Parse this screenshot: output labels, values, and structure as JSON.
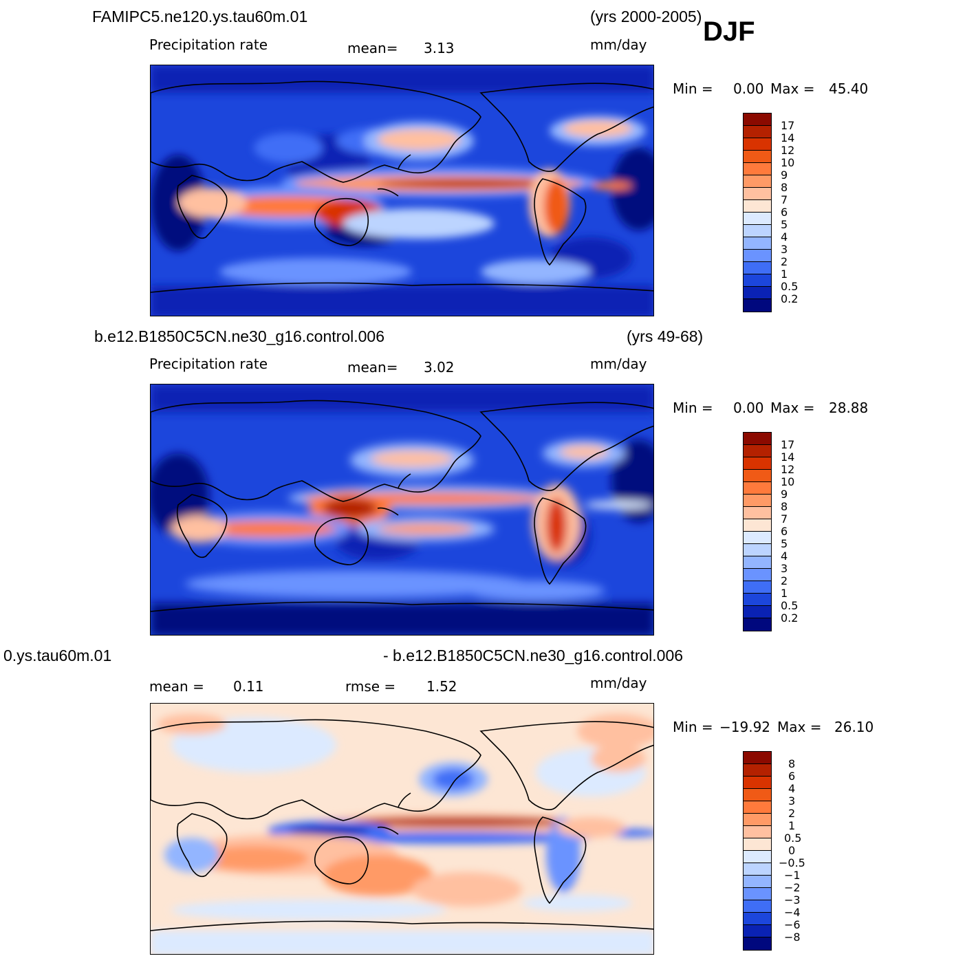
{
  "season": "DJF",
  "panels": [
    {
      "case": "FAMIPC5.ne120.ys.tau60m.01",
      "years": "(yrs 2000-2005)",
      "variable": "Precipitation rate",
      "stat1_label": "mean=",
      "stat1_value": "3.13",
      "units": "mm/day",
      "min_label": "Min =",
      "min_value": "0.00",
      "max_label": "Max =",
      "max_value": "45.40",
      "colorbar_labels": [
        "17",
        "14",
        "12",
        "10",
        "9",
        "8",
        "7",
        "6",
        "5",
        "4",
        "3",
        "2",
        "1",
        "0.5",
        "0.2"
      ]
    },
    {
      "case": "b.e12.B1850C5CN.ne30_g16.control.006",
      "years": "(yrs 49-68)",
      "variable": "Precipitation rate",
      "stat1_label": "mean=",
      "stat1_value": "3.02",
      "units": "mm/day",
      "min_label": "Min =",
      "min_value": "0.00",
      "max_label": "Max =",
      "max_value": "28.88",
      "colorbar_labels": [
        "17",
        "14",
        "12",
        "10",
        "9",
        "8",
        "7",
        "6",
        "5",
        "4",
        "3",
        "2",
        "1",
        "0.5",
        "0.2"
      ]
    },
    {
      "case_left": "0.ys.tau60m.01",
      "case_right": "- b.e12.B1850C5CN.ne30_g16.control.006",
      "stat1_label": "mean =",
      "stat1_value": "0.11",
      "stat2_label": "rmse =",
      "stat2_value": "1.52",
      "units": "mm/day",
      "min_label": "Min =",
      "min_value": "−19.92",
      "max_label": "Max =",
      "max_value": "26.10",
      "colorbar_labels": [
        "8",
        "6",
        "4",
        "3",
        "2",
        "1",
        "0.5",
        "0",
        "−0.5",
        "−1",
        "−2",
        "−3",
        "−4",
        "−6",
        "−8"
      ]
    }
  ],
  "colors": {
    "abs_scale": [
      "#8b0a00",
      "#b42100",
      "#d93300",
      "#f05a16",
      "#ff7a3c",
      "#ff9a66",
      "#ffc0a0",
      "#fde6d4",
      "#dceaff",
      "#bcd4ff",
      "#93b5ff",
      "#6a93ff",
      "#3f6ef6",
      "#1c46dc",
      "#0a22b4",
      "#00087e"
    ],
    "diff_scale": [
      "#8b0a00",
      "#b42100",
      "#d93300",
      "#f05a16",
      "#ff7a3c",
      "#ff9a66",
      "#ffc0a0",
      "#fde6d4",
      "#dceaff",
      "#bcd4ff",
      "#93b5ff",
      "#6a93ff",
      "#3f6ef6",
      "#1c46dc",
      "#0a22b4",
      "#00087e"
    ]
  }
}
